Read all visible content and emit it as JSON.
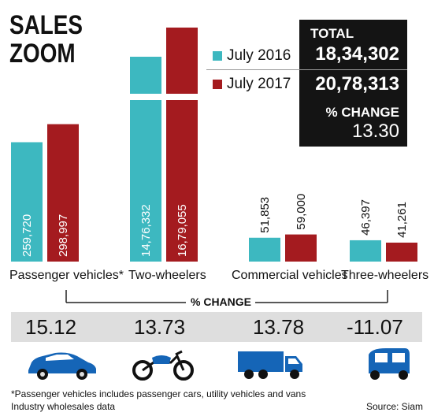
{
  "title_line1": "SALES",
  "title_line2": "ZOOM",
  "legend": {
    "series1_label": "July 2016",
    "series2_label": "July 2017"
  },
  "totals": {
    "label": "TOTAL",
    "value_2016": "18,34,302",
    "value_2017": "20,78,313",
    "change_label": "% CHANGE",
    "change_value": "13.30"
  },
  "colors": {
    "july_2016": "#3db8c0",
    "july_2017": "#a41b1f",
    "box": "#141414",
    "band": "#dedede",
    "icon": "#1565b7"
  },
  "chart_data": {
    "type": "bar",
    "categories": [
      "Passenger vehicles*",
      "Two-wheelers",
      "Commercial vehicles",
      "Three-wheelers"
    ],
    "series": [
      {
        "name": "July 2016",
        "values": [
          259720,
          1476332,
          51853,
          46397
        ],
        "labels": [
          "259,720",
          "14,76,332",
          "51,853",
          "46,397"
        ]
      },
      {
        "name": "July 2017",
        "values": [
          298997,
          1679055,
          59000,
          41261
        ],
        "labels": [
          "298,997",
          "16,79,055",
          "59,000",
          "41,261"
        ]
      }
    ],
    "axis_break": true
  },
  "pct_change": {
    "heading": "% CHANGE",
    "values": [
      "15.12",
      "13.73",
      "13.78",
      "-11.07"
    ]
  },
  "icons": [
    "car-icon",
    "motorcycle-icon",
    "truck-icon",
    "auto-rickshaw-icon"
  ],
  "footnote_line1": "*Passenger vehicles includes passenger cars, utility vehicles and vans",
  "footnote_line2": "Industry wholesales data",
  "source": "Source: Siam"
}
